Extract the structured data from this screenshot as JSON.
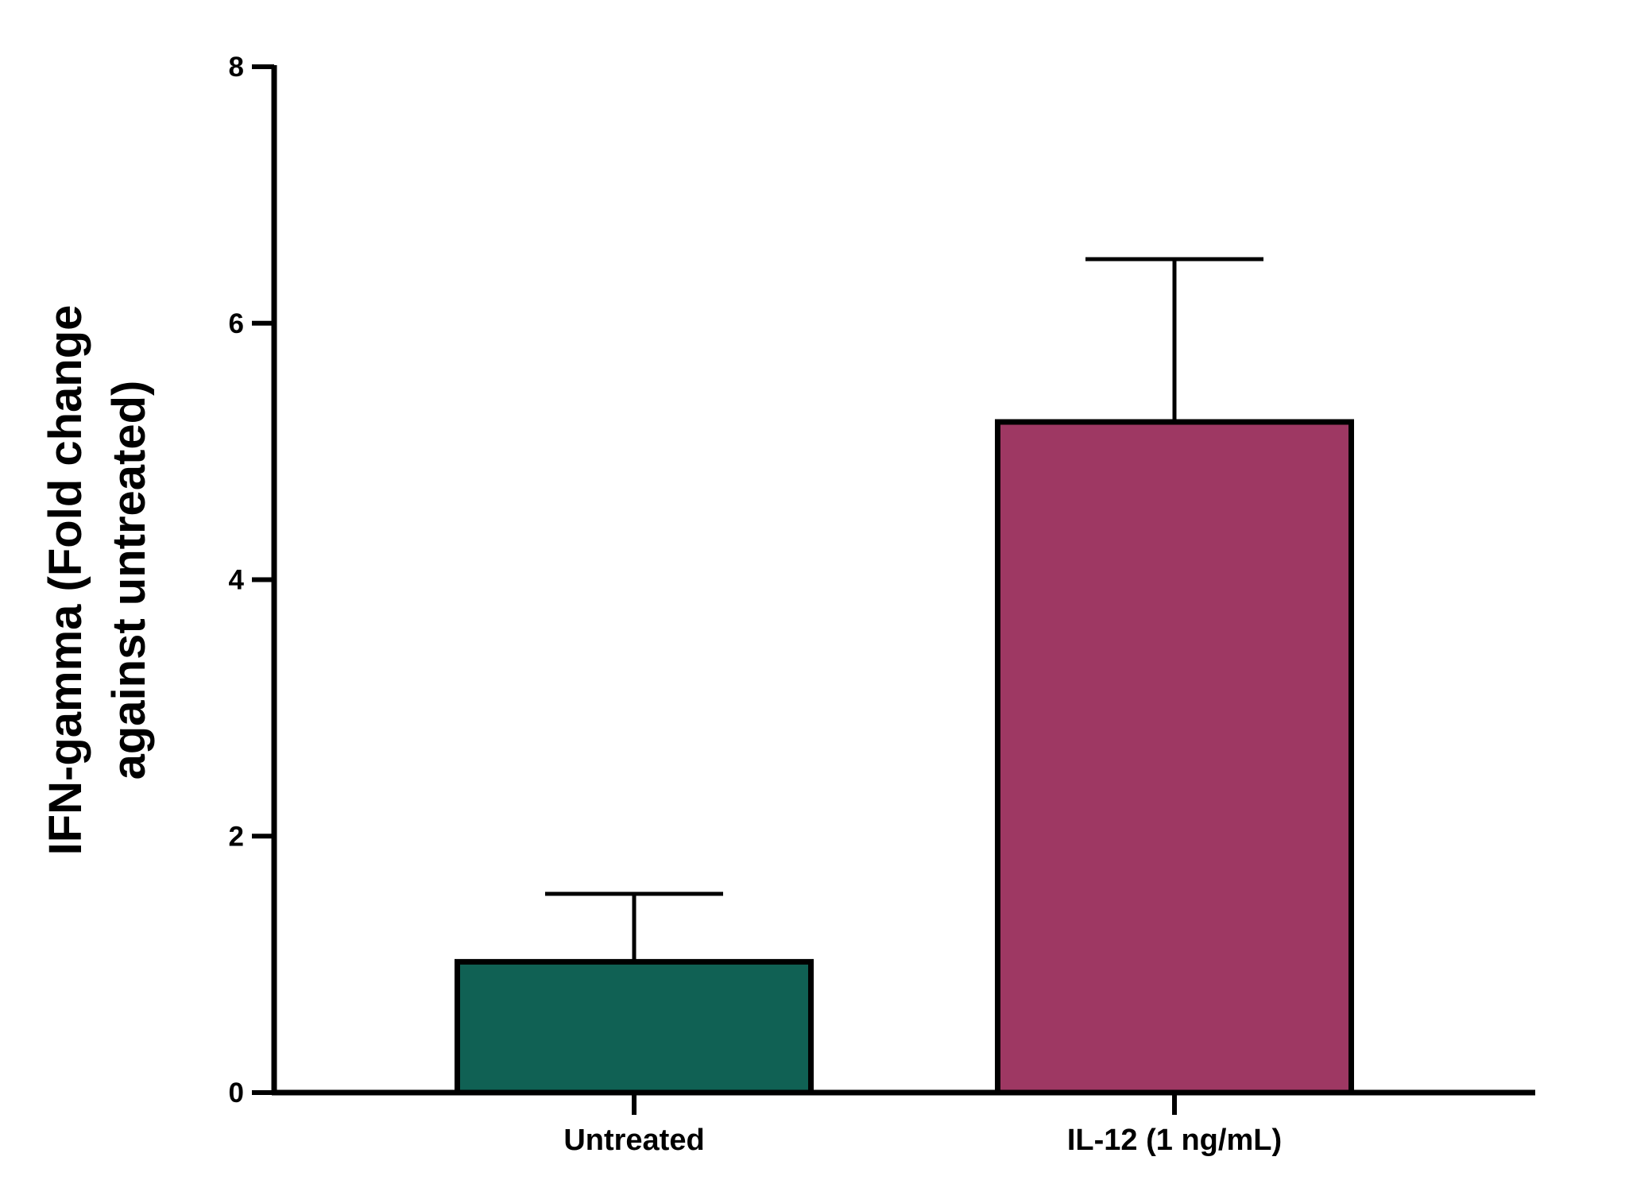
{
  "chart_data": {
    "type": "bar",
    "title": "",
    "xlabel": "",
    "ylabel_lines": [
      "IFN-gamma (Fold change",
      "against untreated)"
    ],
    "categories": [
      "Untreated",
      "IL-12 (1 ng/mL)"
    ],
    "values": [
      1.02,
      5.23
    ],
    "error_upper": [
      0.53,
      1.27
    ],
    "bar_colors": [
      "#106154",
      "#9e3863"
    ],
    "outline_color": "#000000",
    "ylim": [
      0,
      8
    ],
    "yticks": [
      0,
      2,
      4,
      6,
      8
    ],
    "grid": false,
    "legend": "none"
  }
}
